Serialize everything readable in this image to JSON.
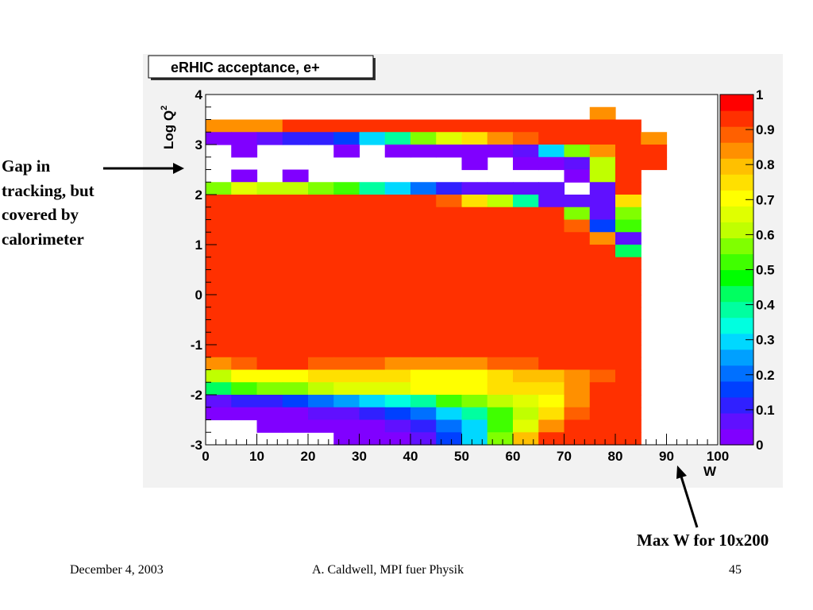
{
  "annotations": {
    "gap_lines": [
      "Gap in",
      "tracking, but",
      "covered by",
      "calorimeter"
    ],
    "max_w": "Max W for 10x200"
  },
  "footer": {
    "date": "December 4, 2003",
    "author": "A. Caldwell, MPI fuer Physik",
    "page": "45"
  },
  "chart_data": {
    "type": "heatmap",
    "title": "eRHIC acceptance, e+",
    "xlabel": "W",
    "ylabel": "Log Q",
    "ylabel_superscript": "2",
    "xlim": [
      0,
      100
    ],
    "ylim": [
      -3,
      4
    ],
    "zlim": [
      0,
      1
    ],
    "x_ticks": [
      0,
      10,
      20,
      30,
      40,
      50,
      60,
      70,
      80,
      90,
      100
    ],
    "y_ticks": [
      -3,
      -2,
      -1,
      0,
      1,
      2,
      3,
      4
    ],
    "z_ticks": [
      0,
      0.1,
      0.2,
      0.3,
      0.4,
      0.5,
      0.6,
      0.7,
      0.8,
      0.9,
      1
    ],
    "tick_labels_x": [
      "0",
      "10",
      "20",
      "30",
      "40",
      "50",
      "60",
      "70",
      "80",
      "90",
      "100"
    ],
    "tick_labels_y": [
      "-3",
      "-2",
      "-1",
      "0",
      "1",
      "2",
      "3",
      "4"
    ],
    "tick_labels_z": [
      "0",
      "0.1",
      "0.2",
      "0.3",
      "0.4",
      "0.5",
      "0.6",
      "0.7",
      "0.8",
      "0.9",
      "1"
    ],
    "x_bin_width": 5,
    "y_bin_width": 0.25,
    "y_bin_start": -3,
    "palette": [
      "#8000ff",
      "#6010ff",
      "#3020ff",
      "#0040ff",
      "#0070ff",
      "#00a0ff",
      "#00d8ff",
      "#00ffe0",
      "#00ffa0",
      "#00ff60",
      "#00ff00",
      "#40ff00",
      "#80ff00",
      "#c0ff00",
      "#e0ff00",
      "#ffff00",
      "#ffe000",
      "#ffc000",
      "#ff9000",
      "#ff6000",
      "#ff3000",
      "#ff0000"
    ],
    "values": [
      [
        null,
        null,
        null,
        null,
        null,
        null,
        null,
        null,
        null,
        null,
        null,
        null,
        null,
        null,
        null,
        null,
        null,
        null,
        null,
        null,
        null,
        null,
        null,
        null,
        null,
        null,
        null,
        null
      ],
      [
        null,
        null,
        null,
        null,
        null,
        null,
        null,
        null,
        null,
        null,
        null,
        null,
        null,
        null,
        null,
        null,
        null,
        null,
        null,
        null,
        null,
        null,
        null,
        null,
        null,
        null,
        null,
        null
      ],
      [
        null,
        null,
        null,
        null,
        null,
        null,
        null,
        null,
        null,
        null,
        null,
        null,
        null,
        null,
        null,
        null,
        null,
        null,
        null,
        null,
        null,
        null,
        null,
        null,
        null,
        null,
        null,
        null
      ],
      [
        null,
        null,
        null,
        null,
        null,
        null,
        null,
        null,
        null,
        null,
        null,
        null,
        null,
        null,
        null,
        0.85,
        null,
        null,
        null,
        null,
        null,
        null,
        null,
        null,
        null,
        null,
        null,
        null
      ],
      [
        0.85,
        0.85,
        0.85,
        0.95,
        0.95,
        0.95,
        0.95,
        0.95,
        0.95,
        0.95,
        0.95,
        0.95,
        0.95,
        0.95,
        0.95,
        0.95,
        0.95,
        null,
        null,
        null,
        null,
        null,
        null,
        null,
        null,
        null,
        null,
        null
      ],
      [
        0.02,
        0.02,
        0.05,
        0.1,
        0.1,
        0.15,
        0.3,
        0.4,
        0.55,
        0.65,
        0.75,
        0.85,
        0.9,
        0.95,
        0.95,
        0.95,
        0.92,
        0.85,
        null,
        null,
        null,
        null,
        null,
        null,
        null,
        null,
        null,
        null
      ],
      [
        null,
        0.02,
        null,
        null,
        null,
        0.02,
        null,
        0.02,
        0.02,
        0.02,
        0.02,
        0.02,
        0.05,
        0.3,
        0.55,
        0.85,
        0.95,
        0.95,
        null,
        null,
        null,
        null,
        null,
        null,
        null,
        null,
        null,
        null
      ],
      [
        null,
        null,
        null,
        null,
        null,
        null,
        null,
        null,
        null,
        null,
        0.02,
        null,
        0.02,
        0.02,
        0.05,
        0.6,
        0.92,
        0.95,
        null,
        null,
        null,
        null,
        null,
        null,
        null,
        null,
        null,
        null
      ],
      [
        null,
        0.02,
        null,
        0.02,
        null,
        null,
        null,
        null,
        null,
        null,
        null,
        null,
        null,
        null,
        0.02,
        0.6,
        0.95,
        null,
        null,
        null,
        null,
        null,
        null,
        null,
        null,
        null,
        null,
        null
      ],
      [
        0.55,
        0.65,
        0.6,
        0.6,
        0.55,
        0.5,
        0.4,
        0.3,
        0.2,
        0.1,
        0.05,
        0.05,
        0.05,
        0.05,
        null,
        0.05,
        0.92,
        null,
        null,
        null,
        null,
        null,
        null,
        null,
        null,
        null,
        null,
        null
      ],
      [
        0.95,
        0.95,
        0.95,
        0.95,
        0.95,
        0.95,
        0.95,
        0.95,
        0.95,
        0.9,
        0.75,
        0.6,
        0.4,
        0.05,
        0.05,
        0.05,
        0.75,
        null,
        null,
        null,
        null,
        null,
        null,
        null,
        null,
        null,
        null,
        null
      ],
      [
        0.95,
        0.95,
        0.95,
        0.95,
        0.95,
        0.95,
        0.95,
        0.95,
        0.95,
        0.95,
        0.95,
        0.95,
        0.95,
        0.92,
        0.55,
        0.05,
        0.55,
        null,
        null,
        null,
        null,
        null,
        null,
        null,
        null,
        null,
        null,
        null
      ],
      [
        0.95,
        0.95,
        0.95,
        0.95,
        0.95,
        0.95,
        0.95,
        0.95,
        0.95,
        0.95,
        0.95,
        0.95,
        0.95,
        0.95,
        0.9,
        0.15,
        0.5,
        null,
        null,
        null,
        null,
        null,
        null,
        null,
        null,
        null,
        null,
        null
      ],
      [
        0.95,
        0.95,
        0.95,
        0.95,
        0.95,
        0.95,
        0.95,
        0.95,
        0.95,
        0.95,
        0.95,
        0.95,
        0.95,
        0.95,
        0.95,
        0.85,
        0.05,
        null,
        null,
        null,
        null,
        null,
        null,
        null,
        null,
        null,
        null,
        null
      ],
      [
        0.95,
        0.95,
        0.95,
        0.95,
        0.95,
        0.95,
        0.95,
        0.95,
        0.95,
        0.95,
        0.95,
        0.95,
        0.95,
        0.95,
        0.95,
        0.95,
        0.45,
        null,
        null,
        null,
        null,
        null,
        null,
        null,
        null,
        null,
        null,
        null
      ],
      [
        0.95,
        0.95,
        0.95,
        0.95,
        0.95,
        0.95,
        0.95,
        0.95,
        0.95,
        0.95,
        0.95,
        0.95,
        0.95,
        0.95,
        0.95,
        0.95,
        0.92,
        null,
        null,
        null,
        null,
        null,
        null,
        null,
        null,
        null,
        null,
        null
      ],
      [
        0.95,
        0.92,
        0.95,
        0.92,
        0.95,
        0.95,
        0.95,
        0.95,
        0.95,
        0.95,
        0.95,
        0.95,
        0.95,
        0.95,
        0.95,
        0.95,
        0.95,
        null,
        null,
        null,
        null,
        null,
        null,
        null,
        null,
        null,
        null,
        null
      ],
      [
        0.95,
        0.95,
        0.95,
        0.95,
        0.95,
        0.95,
        0.95,
        0.95,
        0.95,
        0.95,
        0.95,
        0.95,
        0.95,
        0.95,
        0.95,
        0.95,
        0.95,
        null,
        null,
        null,
        null,
        null,
        null,
        null,
        null,
        null,
        null,
        null
      ],
      [
        0.95,
        0.92,
        0.95,
        0.95,
        0.95,
        0.92,
        0.95,
        0.95,
        0.95,
        0.95,
        0.95,
        0.95,
        0.95,
        0.92,
        0.95,
        0.95,
        0.95,
        null,
        null,
        null,
        null,
        null,
        null,
        null,
        null,
        null,
        null,
        null
      ],
      [
        0.95,
        0.95,
        0.95,
        0.95,
        0.95,
        0.95,
        0.95,
        0.92,
        0.92,
        0.95,
        0.95,
        0.95,
        0.95,
        0.95,
        0.95,
        0.95,
        0.95,
        null,
        null,
        null,
        null,
        null,
        null,
        null,
        null,
        null,
        null,
        null
      ],
      [
        0.95,
        0.95,
        0.95,
        0.92,
        0.95,
        0.95,
        0.95,
        0.95,
        0.95,
        0.92,
        0.95,
        0.92,
        0.95,
        0.95,
        0.92,
        0.92,
        0.92,
        null,
        null,
        null,
        null,
        null,
        null,
        null,
        null,
        null,
        null,
        null
      ],
      [
        0.95,
        0.92,
        0.95,
        0.95,
        0.92,
        0.95,
        0.95,
        0.95,
        0.92,
        0.95,
        0.95,
        0.92,
        0.95,
        0.92,
        0.92,
        0.92,
        0.92,
        null,
        null,
        null,
        null,
        null,
        null,
        null,
        null,
        null,
        null,
        null
      ],
      [
        0.92,
        0.92,
        0.92,
        0.92,
        0.92,
        0.92,
        0.92,
        0.92,
        0.92,
        0.92,
        0.92,
        0.92,
        0.92,
        0.92,
        0.92,
        0.92,
        0.92,
        null,
        null,
        null,
        null,
        null,
        null,
        null,
        null,
        null,
        null,
        null
      ],
      [
        0.85,
        0.9,
        0.92,
        0.92,
        0.9,
        0.88,
        0.88,
        0.85,
        0.85,
        0.85,
        0.85,
        0.88,
        0.9,
        0.92,
        0.92,
        0.92,
        0.92,
        null,
        null,
        null,
        null,
        null,
        null,
        null,
        null,
        null,
        null,
        null
      ],
      [
        0.6,
        0.72,
        0.72,
        0.72,
        0.75,
        0.75,
        0.75,
        0.75,
        0.72,
        0.72,
        0.72,
        0.75,
        0.8,
        0.8,
        0.85,
        0.9,
        0.92,
        null,
        null,
        null,
        null,
        null,
        null,
        null,
        null,
        null,
        null,
        null
      ],
      [
        0.45,
        0.5,
        0.55,
        0.55,
        0.6,
        0.65,
        0.65,
        0.65,
        0.7,
        0.72,
        0.72,
        0.75,
        0.75,
        0.75,
        0.82,
        0.92,
        0.92,
        null,
        null,
        null,
        null,
        null,
        null,
        null,
        null,
        null,
        null,
        null
      ],
      [
        0.05,
        0.1,
        0.1,
        0.15,
        0.2,
        0.25,
        0.3,
        0.35,
        0.4,
        0.5,
        0.55,
        0.6,
        0.65,
        0.7,
        0.85,
        0.92,
        0.92,
        null,
        null,
        null,
        null,
        null,
        null,
        null,
        null,
        null,
        null,
        null
      ],
      [
        0.02,
        0.02,
        0.02,
        0.02,
        0.05,
        0.05,
        0.1,
        0.15,
        0.2,
        0.3,
        0.4,
        0.5,
        0.6,
        0.75,
        0.9,
        0.92,
        0.92,
        null,
        null,
        null,
        null,
        null,
        null,
        null,
        null,
        null,
        null,
        null
      ],
      [
        null,
        null,
        0.02,
        0.02,
        0.02,
        0.02,
        0.02,
        0.05,
        0.1,
        0.2,
        0.3,
        0.5,
        0.65,
        0.85,
        0.92,
        0.92,
        0.92,
        null,
        null,
        null,
        null,
        null,
        null,
        null,
        null,
        null,
        null,
        null
      ],
      [
        null,
        null,
        null,
        null,
        null,
        0.02,
        0.02,
        0.02,
        0.05,
        0.15,
        0.3,
        0.55,
        0.8,
        0.92,
        0.92,
        0.92,
        0.92,
        null,
        null,
        null,
        null,
        null,
        null,
        null,
        null,
        null,
        null,
        null
      ]
    ]
  }
}
